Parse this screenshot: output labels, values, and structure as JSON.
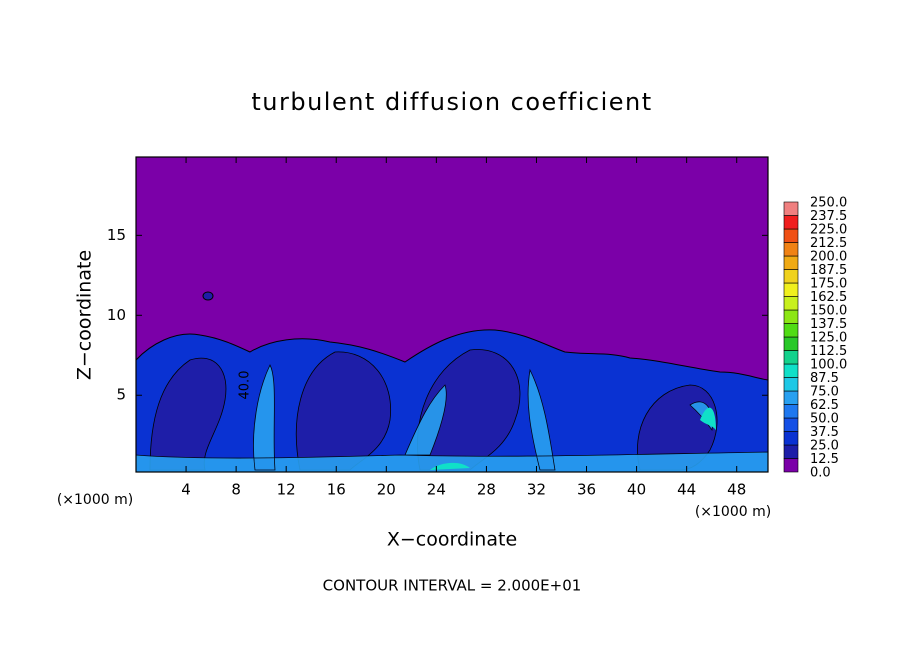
{
  "chart_data": {
    "type": "contour",
    "title": "turbulent diffusion coefficient",
    "xlabel": "X−coordinate",
    "ylabel": "Z−coordinate",
    "xunit": "(×1000 m)",
    "yunit": "(×1000 m)",
    "footer": "CONTOUR INTERVAL = 2.000E+01",
    "annotations": [
      "40.0"
    ],
    "xlim": [
      0,
      50.5
    ],
    "ylim": [
      0.2,
      19.9
    ],
    "xticks": [
      4,
      8,
      12,
      16,
      20,
      24,
      28,
      32,
      36,
      40,
      44,
      48
    ],
    "yticks": [
      5,
      10,
      15
    ],
    "colorbar": {
      "levels": [
        {
          "value": 0,
          "label": "0.0"
        },
        {
          "value": 12.5,
          "label": "12.5"
        },
        {
          "value": 25,
          "label": "25.0"
        },
        {
          "value": 37.5,
          "label": "37.5"
        },
        {
          "value": 50,
          "label": "50.0"
        },
        {
          "value": 62.5,
          "label": "62.5"
        },
        {
          "value": 75,
          "label": "75.0"
        },
        {
          "value": 87.5,
          "label": "87.5"
        },
        {
          "value": 100,
          "label": "100.0"
        },
        {
          "value": 112.5,
          "label": "112.5"
        },
        {
          "value": 125,
          "label": "125.0"
        },
        {
          "value": 137.5,
          "label": "137.5"
        },
        {
          "value": 150,
          "label": "150.0"
        },
        {
          "value": 162.5,
          "label": "162.5"
        },
        {
          "value": 175,
          "label": "175.0"
        },
        {
          "value": 187.5,
          "label": "187.5"
        },
        {
          "value": 200,
          "label": "200.0"
        },
        {
          "value": 212.5,
          "label": "212.5"
        },
        {
          "value": 225,
          "label": "225.0"
        },
        {
          "value": 237.5,
          "label": "237.5"
        },
        {
          "value": 250,
          "label": "250.0"
        }
      ],
      "colors": [
        "#7b00a8",
        "#1e1ea8",
        "#0a32d2",
        "#1450e6",
        "#1e78f0",
        "#28a0f0",
        "#1ec8e6",
        "#10e0c8",
        "#14d28c",
        "#28c828",
        "#50dc14",
        "#8ce614",
        "#c8f01e",
        "#f0f01e",
        "#f0d21e",
        "#f0aa14",
        "#f08214",
        "#f05014",
        "#f01e1e",
        "#f08080"
      ]
    }
  }
}
